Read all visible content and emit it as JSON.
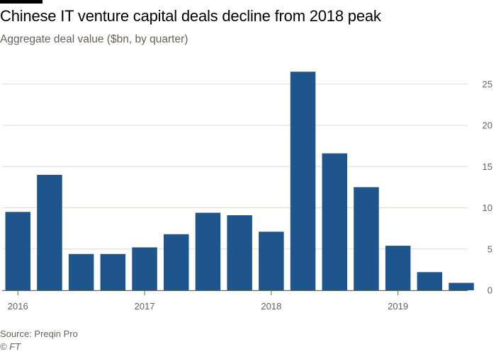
{
  "colors": {
    "bar": "#1e558c",
    "grid": "#e6d9ce",
    "zero_line": "#f2c2b5",
    "axis": "#66605c"
  },
  "source": "Source: Preqin Pro",
  "credit": "© FT",
  "chart_data": {
    "type": "bar",
    "title": "Chinese IT venture capital deals decline from 2018 peak",
    "subtitle": "Aggregate deal value ($bn, by quarter)",
    "categories": [
      "2016 Q1",
      "2016 Q2",
      "2016 Q3",
      "2016 Q4",
      "2017 Q1",
      "2017 Q2",
      "2017 Q3",
      "2017 Q4",
      "2018 Q1",
      "2018 Q2",
      "2018 Q3",
      "2018 Q4",
      "2019 Q1",
      "2019 Q2",
      "2019 Q3"
    ],
    "values": [
      9.5,
      14.0,
      4.4,
      4.4,
      5.2,
      6.8,
      9.4,
      9.1,
      7.1,
      26.5,
      16.6,
      12.5,
      5.4,
      2.2,
      0.9
    ],
    "x_tick_labels": [
      "2016",
      "2017",
      "2018",
      "2019"
    ],
    "y_ticks": [
      0,
      5,
      10,
      15,
      20,
      25
    ],
    "ylim": [
      0,
      27
    ],
    "y_axis_position": "right",
    "grid": true,
    "legend": "none"
  }
}
